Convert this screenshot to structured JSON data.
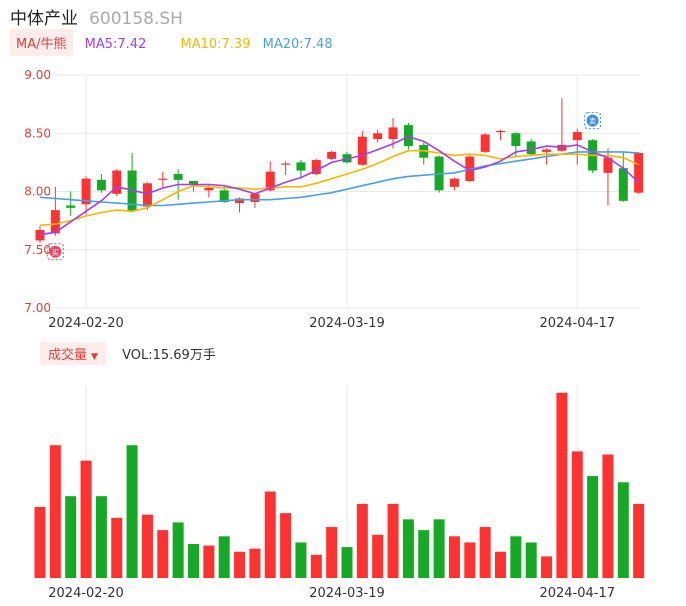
{
  "header": {
    "name": "中体产业",
    "code": "600158.SH"
  },
  "ma_row": {
    "toggle_label": "MA/牛熊",
    "ma5": "MA5:7.42",
    "ma10": "MA10:7.39",
    "ma20": "MA20:7.48"
  },
  "volume_row": {
    "toggle_label": "成交量",
    "caret": "▼",
    "value_text": "VOL:15.69万手"
  },
  "colors": {
    "up": "#ff3232",
    "down": "#15a925",
    "ma5": "#a040f0",
    "ma10": "#f5b800",
    "ma20": "#4a9ee8",
    "grid": "#e8e8e8",
    "axis_text": "#e0403a"
  },
  "chart_data": [
    {
      "type": "candlestick",
      "y_ticks": [
        "9.00",
        "8.50",
        "8.00",
        "7.50",
        "7.00"
      ],
      "ylim": [
        7.0,
        9.0
      ],
      "x_tick_labels": [
        "2024-02-20",
        "2024-03-19",
        "2024-04-17"
      ],
      "x_tick_indices": [
        3,
        20,
        35
      ],
      "markers": [
        {
          "index": 1,
          "type": "buy",
          "glyph": "买",
          "at_price": 7.5
        },
        {
          "index": 36,
          "type": "sell",
          "glyph": "卖",
          "at_price": 8.6
        }
      ],
      "candles": [
        {
          "open": 7.58,
          "close": 7.67,
          "high": 7.7,
          "low": 7.56
        },
        {
          "open": 7.64,
          "close": 7.84,
          "high": 8.04,
          "low": 7.62
        },
        {
          "open": 7.88,
          "close": 7.86,
          "high": 8.0,
          "low": 7.79
        },
        {
          "open": 7.89,
          "close": 8.11,
          "high": 8.13,
          "low": 7.8
        },
        {
          "open": 8.1,
          "close": 8.01,
          "high": 8.15,
          "low": 7.99
        },
        {
          "open": 7.98,
          "close": 8.18,
          "high": 8.19,
          "low": 7.96
        },
        {
          "open": 8.18,
          "close": 7.83,
          "high": 8.33,
          "low": 7.82
        },
        {
          "open": 7.87,
          "close": 8.07,
          "high": 8.08,
          "low": 7.84
        },
        {
          "open": 8.1,
          "close": 8.11,
          "high": 8.17,
          "low": 8.03
        },
        {
          "open": 8.15,
          "close": 8.1,
          "high": 8.19,
          "low": 7.93
        },
        {
          "open": 8.09,
          "close": 8.06,
          "high": 8.09,
          "low": 8.0
        },
        {
          "open": 8.01,
          "close": 8.03,
          "high": 8.06,
          "low": 7.95
        },
        {
          "open": 8.01,
          "close": 7.91,
          "high": 8.04,
          "low": 7.9
        },
        {
          "open": 7.9,
          "close": 7.94,
          "high": 7.95,
          "low": 7.82
        },
        {
          "open": 7.91,
          "close": 7.98,
          "high": 7.99,
          "low": 7.86
        },
        {
          "open": 8.01,
          "close": 8.17,
          "high": 8.26,
          "low": 8.0
        },
        {
          "open": 8.23,
          "close": 8.24,
          "high": 8.26,
          "low": 8.14
        },
        {
          "open": 8.25,
          "close": 8.18,
          "high": 8.27,
          "low": 8.11
        },
        {
          "open": 8.15,
          "close": 8.27,
          "high": 8.28,
          "low": 8.14
        },
        {
          "open": 8.28,
          "close": 8.34,
          "high": 8.35,
          "low": 8.27
        },
        {
          "open": 8.32,
          "close": 8.25,
          "high": 8.34,
          "low": 8.24
        },
        {
          "open": 8.23,
          "close": 8.47,
          "high": 8.52,
          "low": 8.22
        },
        {
          "open": 8.45,
          "close": 8.5,
          "high": 8.53,
          "low": 8.42
        },
        {
          "open": 8.45,
          "close": 8.55,
          "high": 8.63,
          "low": 8.37
        },
        {
          "open": 8.57,
          "close": 8.39,
          "high": 8.59,
          "low": 8.36
        },
        {
          "open": 8.4,
          "close": 8.29,
          "high": 8.42,
          "low": 8.23
        },
        {
          "open": 8.3,
          "close": 8.01,
          "high": 8.31,
          "low": 7.99
        },
        {
          "open": 8.04,
          "close": 8.11,
          "high": 8.12,
          "low": 8.01
        },
        {
          "open": 8.09,
          "close": 8.3,
          "high": 8.31,
          "low": 8.08
        },
        {
          "open": 8.34,
          "close": 8.49,
          "high": 8.5,
          "low": 8.33
        },
        {
          "open": 8.51,
          "close": 8.52,
          "high": 8.53,
          "low": 8.44
        },
        {
          "open": 8.5,
          "close": 8.39,
          "high": 8.51,
          "low": 8.3
        },
        {
          "open": 8.43,
          "close": 8.32,
          "high": 8.45,
          "low": 8.31
        },
        {
          "open": 8.34,
          "close": 8.36,
          "high": 8.37,
          "low": 8.23
        },
        {
          "open": 8.35,
          "close": 8.4,
          "high": 8.8,
          "low": 8.34
        },
        {
          "open": 8.44,
          "close": 8.51,
          "high": 8.54,
          "low": 8.23
        },
        {
          "open": 8.44,
          "close": 8.18,
          "high": 8.45,
          "low": 8.16
        },
        {
          "open": 8.16,
          "close": 8.29,
          "high": 8.37,
          "low": 7.88
        },
        {
          "open": 8.2,
          "close": 7.92,
          "high": 8.34,
          "low": 7.91
        },
        {
          "open": 7.99,
          "close": 8.33,
          "high": 8.34,
          "low": 7.98
        }
      ],
      "ma5": [
        7.63,
        7.65,
        7.74,
        7.83,
        7.92,
        8.04,
        8.01,
        7.98,
        8.03,
        8.06,
        8.06,
        8.06,
        8.05,
        8.02,
        7.98,
        8.03,
        8.08,
        8.12,
        8.18,
        8.25,
        8.28,
        8.31,
        8.36,
        8.41,
        8.47,
        8.43,
        8.35,
        8.26,
        8.18,
        8.21,
        8.26,
        8.34,
        8.36,
        8.39,
        8.38,
        8.4,
        8.34,
        8.29,
        8.2,
        8.08
      ],
      "ma10": [
        7.71,
        7.72,
        7.75,
        7.79,
        7.82,
        7.84,
        7.83,
        7.86,
        7.93,
        8.0,
        8.05,
        8.04,
        8.03,
        8.03,
        8.02,
        8.03,
        8.04,
        8.04,
        8.07,
        8.11,
        8.15,
        8.19,
        8.24,
        8.3,
        8.35,
        8.35,
        8.33,
        8.31,
        8.32,
        8.31,
        8.28,
        8.3,
        8.31,
        8.32,
        8.32,
        8.32,
        8.31,
        8.31,
        8.29,
        8.23
      ],
      "ma20": [
        7.95,
        7.94,
        7.93,
        7.92,
        7.91,
        7.9,
        7.89,
        7.88,
        7.88,
        7.89,
        7.9,
        7.91,
        7.92,
        7.93,
        7.93,
        7.93,
        7.94,
        7.95,
        7.97,
        7.99,
        8.02,
        8.05,
        8.08,
        8.11,
        8.13,
        8.14,
        8.15,
        8.16,
        8.19,
        8.22,
        8.24,
        8.26,
        8.28,
        8.3,
        8.32,
        8.34,
        8.34,
        8.34,
        8.34,
        8.33
      ],
      "ma_note": "moving-average levels estimated per bar from the overlay lines"
    },
    {
      "type": "bar",
      "series_name": "volume",
      "x_tick_labels": [
        "2024-02-20",
        "2024-03-19",
        "2024-04-17"
      ],
      "values": [
        0.46,
        0.86,
        0.53,
        0.76,
        0.53,
        0.39,
        0.86,
        0.41,
        0.31,
        0.36,
        0.22,
        0.21,
        0.27,
        0.17,
        0.19,
        0.56,
        0.42,
        0.23,
        0.15,
        0.33,
        0.2,
        0.48,
        0.28,
        0.48,
        0.38,
        0.31,
        0.38,
        0.27,
        0.23,
        0.33,
        0.17,
        0.27,
        0.23,
        0.14,
        1.2,
        0.82,
        0.66,
        0.8,
        0.62,
        0.48
      ],
      "ylim": [
        0,
        1.25
      ],
      "units": "relative"
    }
  ]
}
